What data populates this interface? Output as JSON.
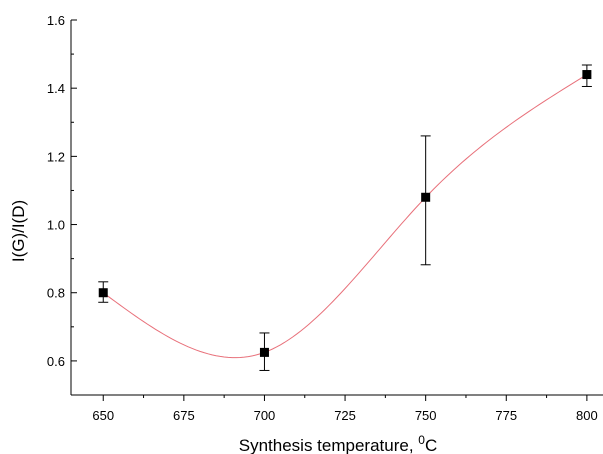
{
  "chart_data": {
    "type": "scatter",
    "title": "",
    "xlabel": "Synthesis temperature, ",
    "xlabel_superscript": "0",
    "xlabel_unit": "C",
    "ylabel": "I(G)/I(D)",
    "xlim": [
      640,
      805
    ],
    "ylim": [
      0.5,
      1.6
    ],
    "x_ticks": [
      650,
      675,
      700,
      725,
      750,
      775,
      800
    ],
    "y_ticks": [
      "0.6",
      "0.8",
      "1.0",
      "1.2",
      "1.4",
      "1.6"
    ],
    "grid": false,
    "points": [
      {
        "x": 650,
        "y": 0.8,
        "err_low": 0.772,
        "err_high": 0.832
      },
      {
        "x": 700,
        "y": 0.625,
        "err_low": 0.572,
        "err_high": 0.682
      },
      {
        "x": 750,
        "y": 1.08,
        "err_low": 0.882,
        "err_high": 1.26
      },
      {
        "x": 800,
        "y": 1.44,
        "err_low": 1.405,
        "err_high": 1.468
      }
    ],
    "fit_curve": {
      "type": "cubic spline",
      "min_point": {
        "x": 683,
        "y": 0.577
      }
    },
    "colors": {
      "points": "#000000",
      "error_bars": "#000000",
      "fit_curve": "#e8707a",
      "axes": "#000000"
    }
  }
}
